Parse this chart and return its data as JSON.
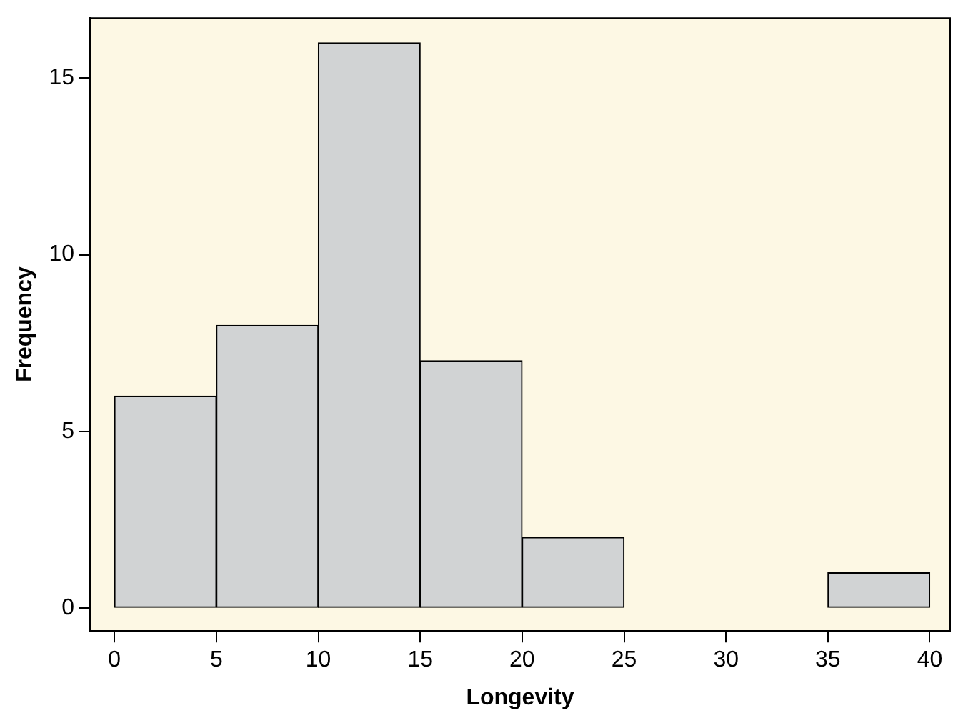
{
  "chart_data": {
    "type": "histogram",
    "xlabel": "Longevity",
    "ylabel": "Frequency",
    "bins": [
      0,
      5,
      10,
      15,
      20,
      25,
      30,
      35,
      40
    ],
    "values": [
      6,
      8,
      16,
      7,
      2,
      0,
      0,
      1
    ],
    "color": "#d1d3d4",
    "xlim": [
      -1.2,
      41
    ],
    "xticks": [
      0,
      5,
      10,
      15,
      20,
      25,
      30,
      35,
      40
    ],
    "ylim": [
      -0.65,
      16.7
    ],
    "yticks": [
      0,
      5,
      10,
      15
    ],
    "grid": false,
    "legend": false
  }
}
